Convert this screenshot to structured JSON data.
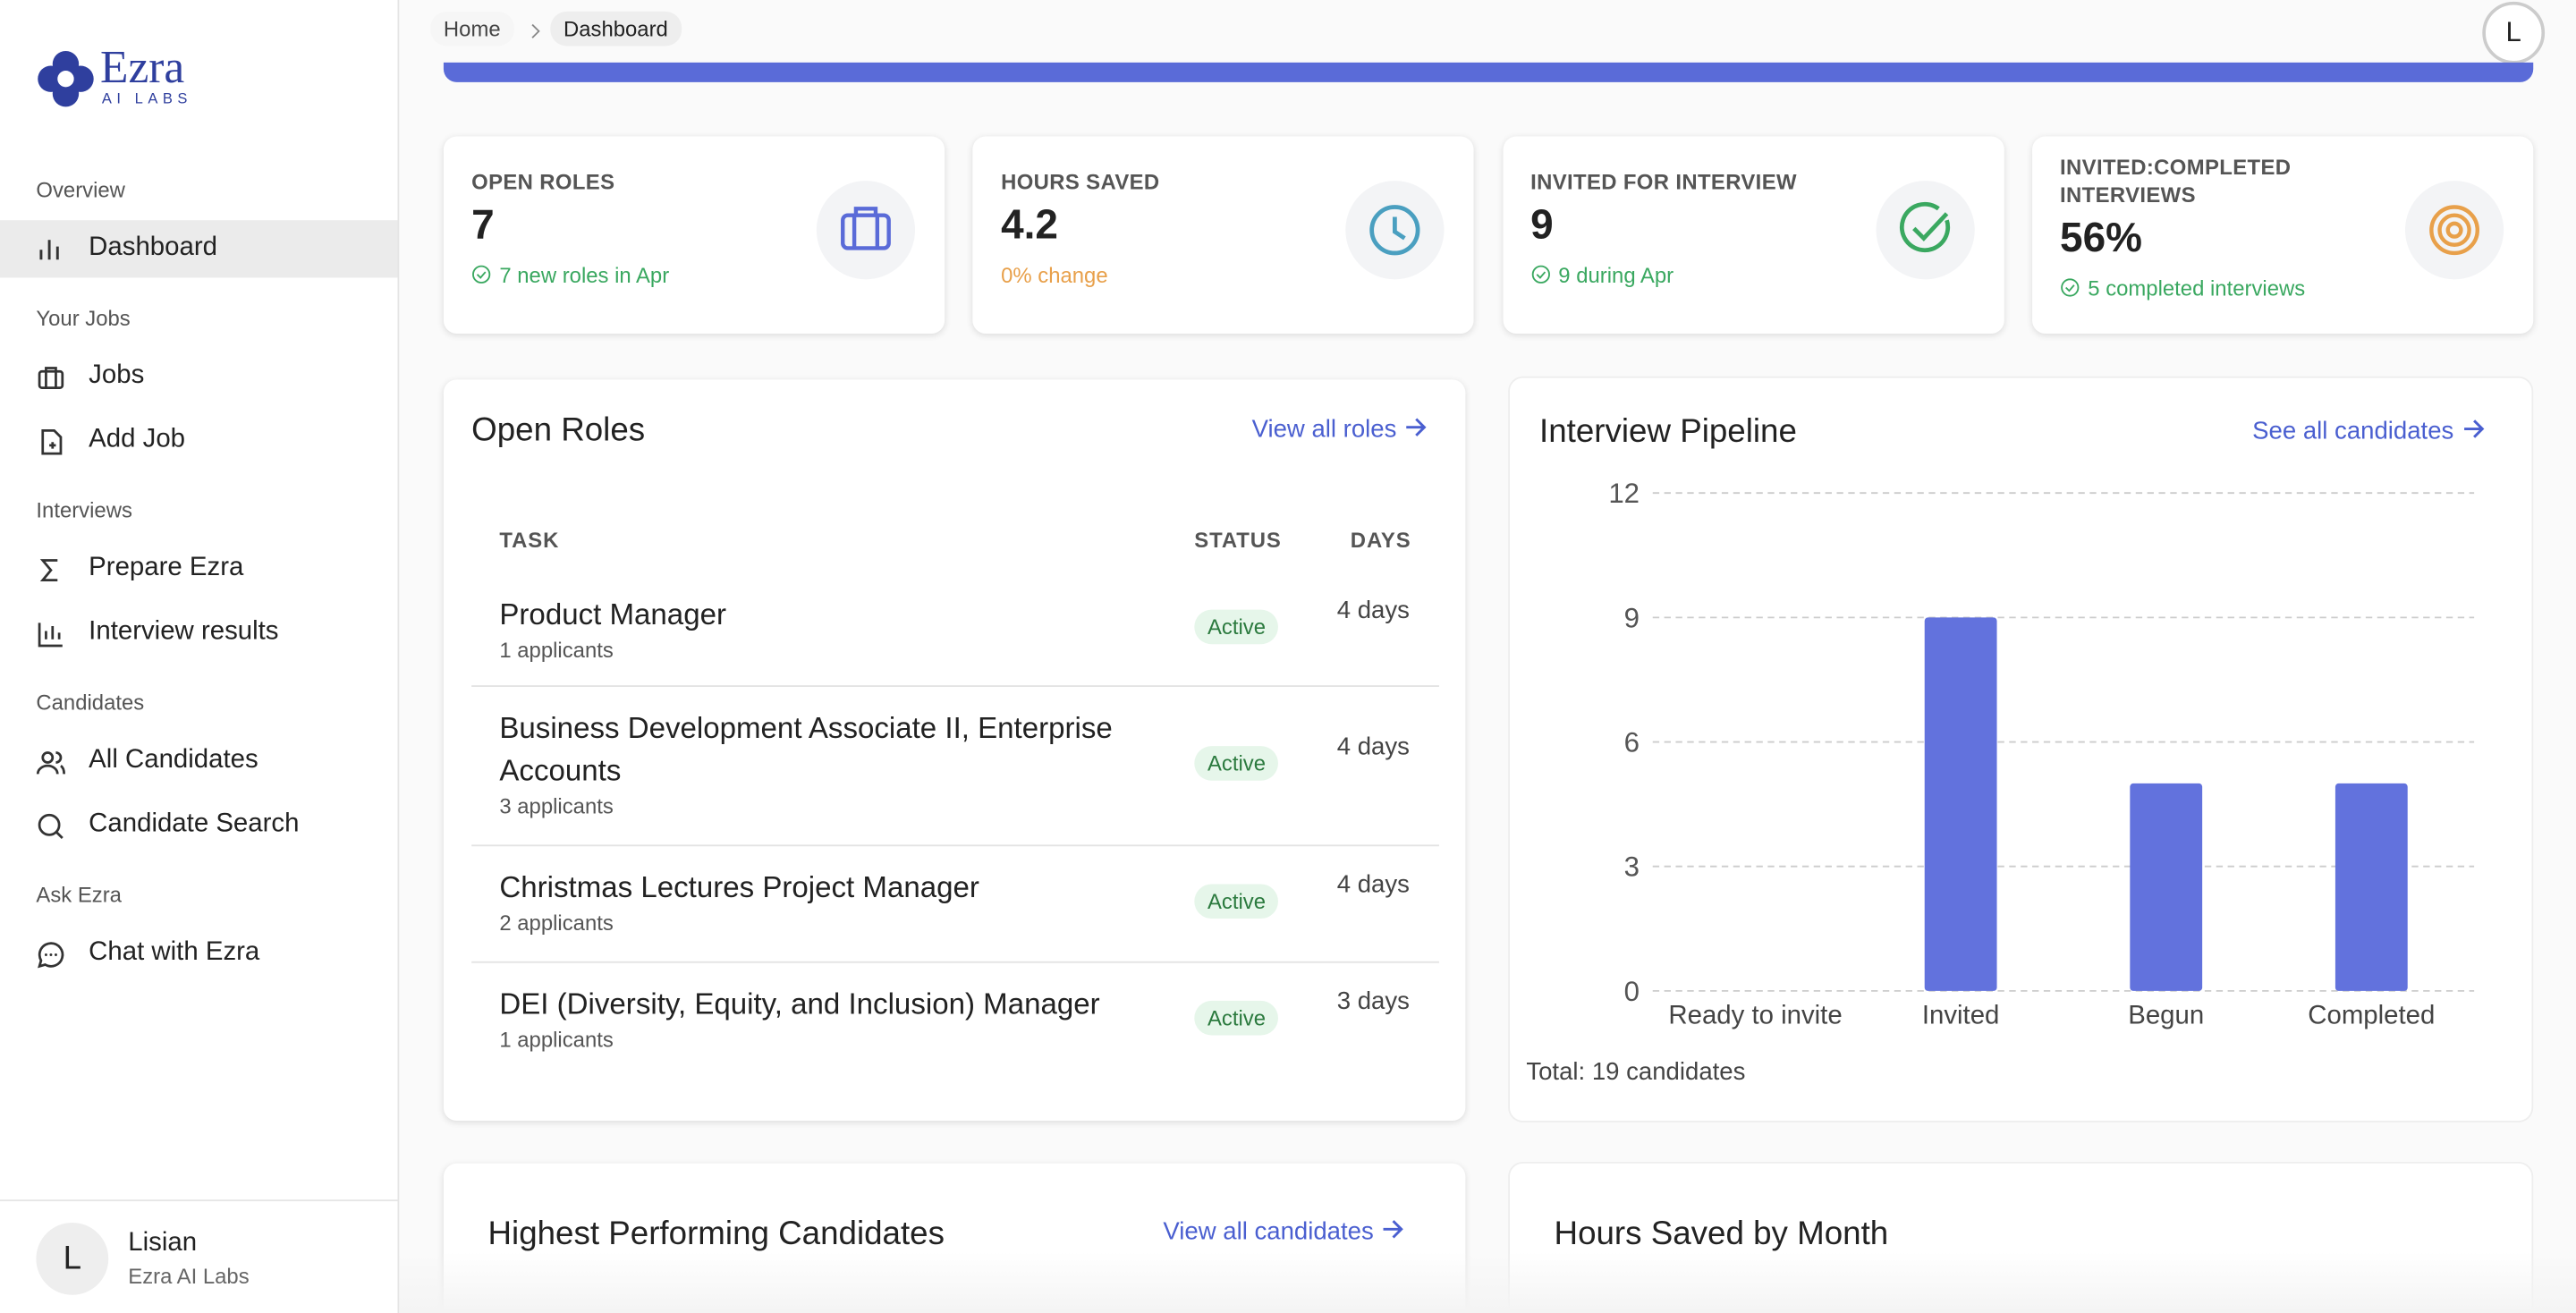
{
  "brand": {
    "name": "Ezra",
    "sub": "AI LABS"
  },
  "breadcrumb": [
    "Home",
    "Dashboard"
  ],
  "avatar": "L",
  "nav": [
    {
      "heading": "Overview",
      "items": [
        "Dashboard"
      ]
    },
    {
      "heading": "Your Jobs",
      "items": [
        "Jobs",
        "Add Job"
      ]
    },
    {
      "heading": "Interviews",
      "items": [
        "Prepare Ezra",
        "Interview results"
      ]
    },
    {
      "heading": "Candidates",
      "items": [
        "All Candidates",
        "Candidate Search"
      ]
    },
    {
      "heading": "Ask Ezra",
      "items": [
        "Chat with Ezra"
      ]
    }
  ],
  "user": {
    "initial": "L",
    "name": "Lisian",
    "org": "Ezra AI Labs"
  },
  "stats": [
    {
      "label": "OPEN ROLES",
      "value": "7",
      "note": "7 new roles in Apr"
    },
    {
      "label": "HOURS SAVED",
      "value": "4.2",
      "note": "0% change"
    },
    {
      "label": "INVITED FOR INTERVIEW",
      "value": "9",
      "note": "9 during Apr"
    },
    {
      "label": "INVITED:COMPLETED INTERVIEWS",
      "value": "56%",
      "note": "5 completed interviews"
    }
  ],
  "open_roles": {
    "title": "Open Roles",
    "link": "View all roles",
    "columns": [
      "TASK",
      "STATUS",
      "DAYS"
    ],
    "rows": [
      {
        "task": "Product Manager",
        "applicants": "1 applicants",
        "status": "Active",
        "days": "4 days"
      },
      {
        "task": "Business Development Associate II, Enterprise Accounts",
        "applicants": "3 applicants",
        "status": "Active",
        "days": "4 days"
      },
      {
        "task": "Christmas Lectures Project Manager",
        "applicants": "2 applicants",
        "status": "Active",
        "days": "4 days"
      },
      {
        "task": "DEI (Diversity, Equity, and Inclusion) Manager",
        "applicants": "1 applicants",
        "status": "Active",
        "days": "3 days"
      }
    ]
  },
  "pipeline": {
    "title": "Interview Pipeline",
    "link": "See all candidates",
    "chart_data": {
      "type": "bar",
      "categories": [
        "Ready to invite",
        "Invited",
        "Begun",
        "Completed"
      ],
      "values": [
        0,
        9,
        5,
        5
      ],
      "ylim": [
        0,
        12
      ],
      "yticks": [
        0,
        3,
        6,
        9,
        12
      ],
      "color": "#6272dd",
      "grid": true
    },
    "total": "Total: 19 candidates"
  },
  "bottom": {
    "candidates_title": "Highest Performing Candidates",
    "candidates_link": "View all candidates",
    "hours_title": "Hours Saved by Month"
  }
}
